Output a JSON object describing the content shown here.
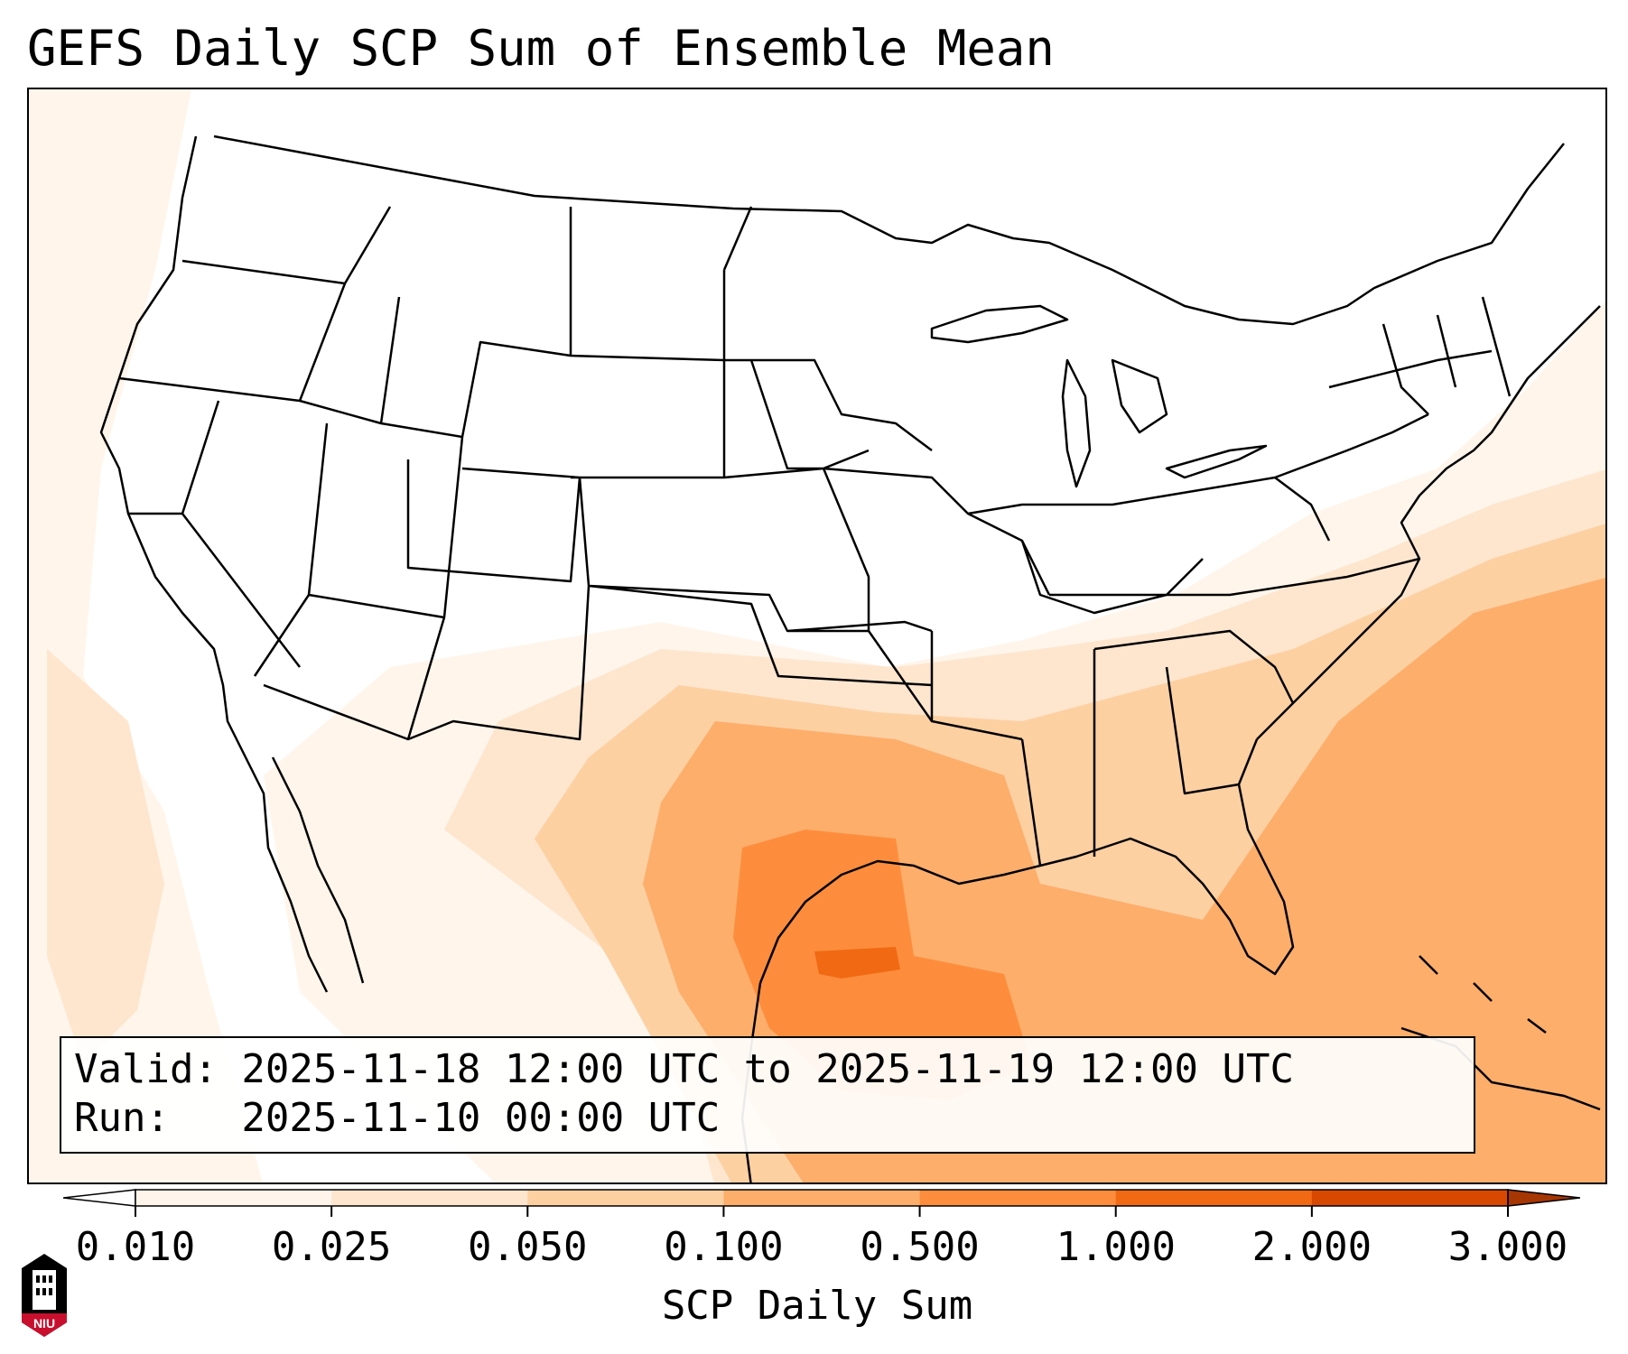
{
  "title": "GEFS Daily SCP Sum of Ensemble Mean",
  "info": {
    "valid_line": "Valid: 2025-11-18 12:00 UTC to 2025-11-19 12:00 UTC",
    "run_line": "Run:   2025-11-10 00:00 UTC"
  },
  "colorbar": {
    "label": "SCP Daily Sum",
    "ticks": [
      "0.010",
      "0.025",
      "0.050",
      "0.100",
      "0.500",
      "1.000",
      "2.000",
      "3.000"
    ],
    "colors": [
      "#fff5eb",
      "#fee6ce",
      "#fdd0a2",
      "#fdae6b",
      "#fd8d3c",
      "#f16913",
      "#d94801",
      "#a63603"
    ],
    "extend": "both"
  },
  "logo": {
    "text": "NIU",
    "colors": {
      "red": "#c8102e",
      "black": "#000000"
    }
  },
  "field_colors": {
    "none": "#ffffff",
    "lightest": "#fff5eb",
    "light": "#fee6ce",
    "medium": "#fdd0a2",
    "orange": "#fdae6b",
    "dark": "#fd8d3c",
    "darkest": "#f16913"
  }
}
